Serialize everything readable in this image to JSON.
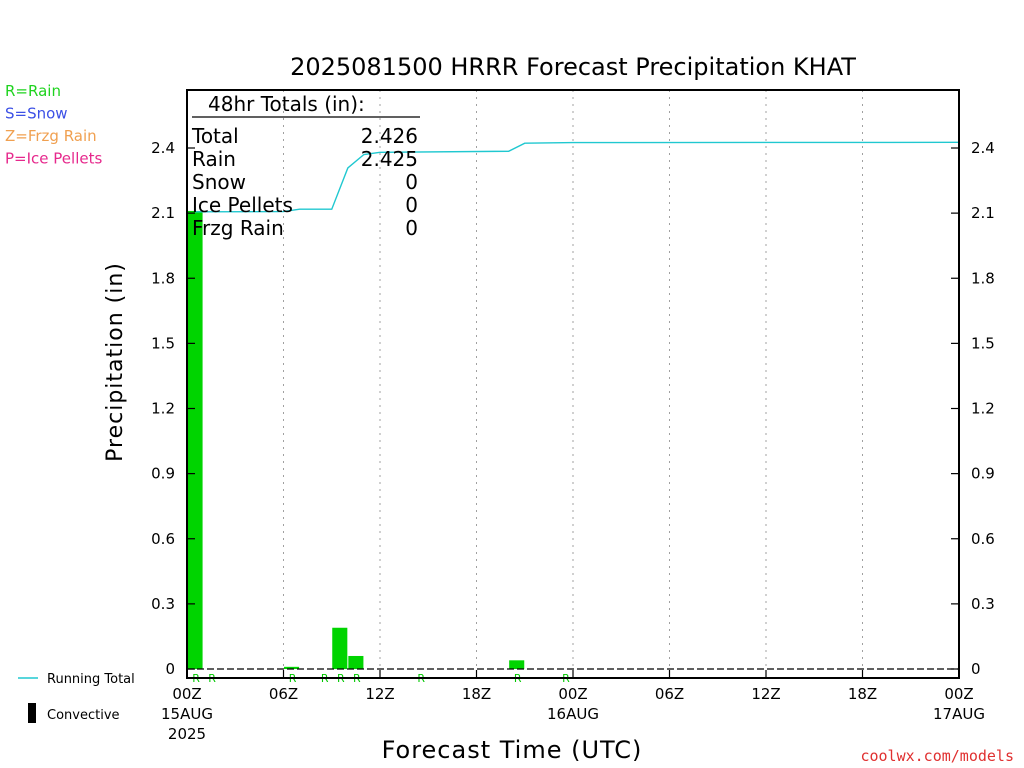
{
  "title": "2025081500 HRRR Forecast Precipitation KHAT",
  "ylabel": "Precipitation (in)",
  "xlabel": "Forecast Time (UTC)",
  "credit": "coolwx.com/models",
  "type_legend": [
    {
      "label": "R=Rain",
      "color": "#1fd31f"
    },
    {
      "label": "S=Snow",
      "color": "#3c50e6"
    },
    {
      "label": "Z=Frzg Rain",
      "color": "#f0a050"
    },
    {
      "label": "P=Ice Pellets",
      "color": "#e6288c"
    }
  ],
  "totals": {
    "header": "48hr Totals (in):",
    "rows": [
      {
        "label": "Total",
        "value": "2.426"
      },
      {
        "label": "Rain",
        "value": "2.425"
      },
      {
        "label": "Snow",
        "value": "0"
      },
      {
        "label": "Ice Pellets",
        "value": "0"
      },
      {
        "label": "Frzg Rain",
        "value": "0"
      }
    ]
  },
  "bottom_legend": {
    "running_total": "Running Total",
    "convective": "Convective"
  },
  "colors": {
    "bar": "#00d400",
    "running_total": "#20c8d0",
    "rain_marker": "#00c800"
  },
  "chart_data": {
    "type": "bar",
    "x_unit": "forecast hour",
    "xlim": [
      0,
      48
    ],
    "ylim": [
      0,
      2.64
    ],
    "yticks": [
      0,
      0.3,
      0.6,
      0.9,
      1.2,
      1.5,
      1.8,
      2.1,
      2.4
    ],
    "ytick_labels": [
      "0",
      "0.3",
      "0.6",
      "0.9",
      "1.2",
      "1.5",
      "1.8",
      "2.1",
      "2.4"
    ],
    "xticks": [
      {
        "hour": 0,
        "label": "00Z",
        "date": "15AUG",
        "year": "2025"
      },
      {
        "hour": 6,
        "label": "06Z"
      },
      {
        "hour": 12,
        "label": "12Z"
      },
      {
        "hour": 18,
        "label": "18Z"
      },
      {
        "hour": 24,
        "label": "00Z",
        "date": "16AUG"
      },
      {
        "hour": 30,
        "label": "06Z"
      },
      {
        "hour": 36,
        "label": "12Z"
      },
      {
        "hour": 42,
        "label": "18Z"
      },
      {
        "hour": 48,
        "label": "00Z",
        "date": "17AUG"
      }
    ],
    "bars": [
      {
        "hour": 1,
        "value": 2.11
      },
      {
        "hour": 7,
        "value": 0.01
      },
      {
        "hour": 10,
        "value": 0.19
      },
      {
        "hour": 11,
        "value": 0.06
      },
      {
        "hour": 21,
        "value": 0.04
      }
    ],
    "ptype_markers": [
      {
        "hour": 1,
        "label": "R"
      },
      {
        "hour": 2,
        "label": "R"
      },
      {
        "hour": 7,
        "label": "R"
      },
      {
        "hour": 9,
        "label": "R"
      },
      {
        "hour": 10,
        "label": "R"
      },
      {
        "hour": 11,
        "label": "R"
      },
      {
        "hour": 15,
        "label": "R"
      },
      {
        "hour": 21,
        "label": "R"
      },
      {
        "hour": 24,
        "label": "R"
      }
    ],
    "running_total": [
      {
        "hour": 0.5,
        "value": 2.106
      },
      {
        "hour": 6,
        "value": 2.107
      },
      {
        "hour": 7,
        "value": 2.118
      },
      {
        "hour": 9,
        "value": 2.118
      },
      {
        "hour": 10,
        "value": 2.308
      },
      {
        "hour": 11,
        "value": 2.37
      },
      {
        "hour": 12,
        "value": 2.38
      },
      {
        "hour": 20,
        "value": 2.385
      },
      {
        "hour": 21,
        "value": 2.422
      },
      {
        "hour": 24,
        "value": 2.425
      },
      {
        "hour": 48,
        "value": 2.426
      }
    ]
  }
}
